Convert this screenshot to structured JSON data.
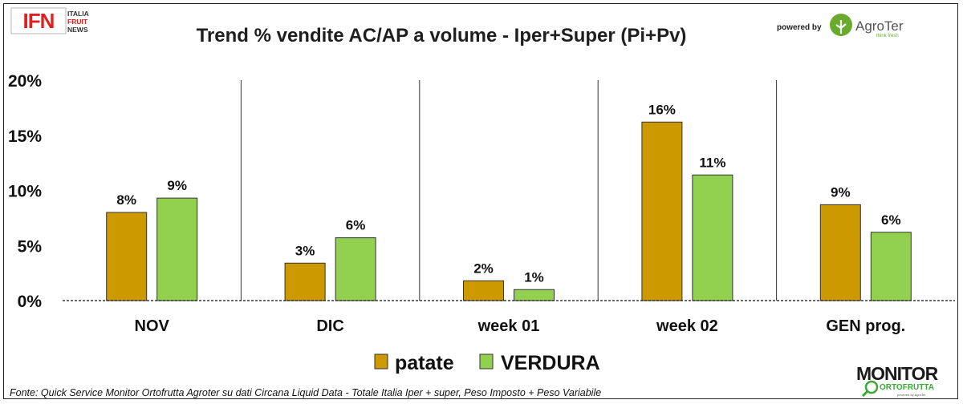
{
  "header": {
    "logo_text": "IFN",
    "logo_sub": [
      "ITALIA",
      "FRUIT",
      "NEWS"
    ],
    "powered_by": "powered by",
    "partner_name": "AgroTer",
    "partner_tagline": "think fresh"
  },
  "footer": {
    "source": "Fonte: Quick Service Monitor Ortofrutta Agroter su dati Circana Liquid Data - Totale Italia Iper + super, Peso Imposto + Peso Variabile",
    "brand_main": "MONITOR",
    "brand_sub": "ORTOFRUTTA",
    "brand_powered": "powered by AgroTer"
  },
  "colors": {
    "patate": "#cc9900",
    "verdura": "#92d050",
    "title": "#1f1f1f"
  },
  "chart_data": {
    "type": "bar",
    "title": "Trend % vendite AC/AP a volume -  Iper+Super (Pi+Pv)",
    "categories": [
      "NOV",
      "DIC",
      "week 01",
      "week 02",
      "GEN prog."
    ],
    "series": [
      {
        "name": "patate",
        "values": [
          8.0,
          3.4,
          1.8,
          16.2,
          8.7
        ],
        "labels": [
          "8%",
          "3%",
          "2%",
          "16%",
          "9%"
        ]
      },
      {
        "name": "VERDURA",
        "values": [
          9.3,
          5.7,
          1.0,
          11.4,
          6.2
        ],
        "labels": [
          "9%",
          "6%",
          "1%",
          "11%",
          "6%"
        ]
      }
    ],
    "yticks": [
      "0%",
      "5%",
      "10%",
      "15%",
      "20%"
    ],
    "ylim": [
      0,
      20
    ],
    "legend": "bottom-center"
  }
}
